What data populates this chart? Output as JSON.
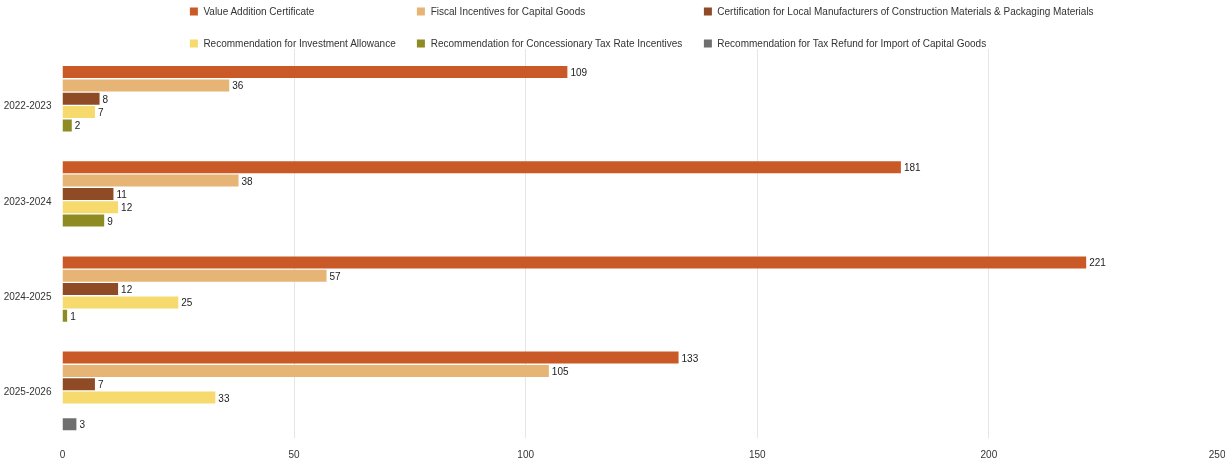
{
  "chart_data": {
    "type": "bar",
    "orientation": "horizontal",
    "categories": [
      "2022-2023",
      "2023-2024",
      "2024-2025",
      "2025-2026"
    ],
    "series": [
      {
        "name": "Value Addition Certificate",
        "color": "#c95a27",
        "values": [
          109,
          181,
          221,
          133
        ]
      },
      {
        "name": "Fiscal Incentives for Capital Goods",
        "color": "#e6b474",
        "values": [
          36,
          38,
          57,
          105
        ]
      },
      {
        "name": "Certification for Local Manufacturers of Construction Materials & Packaging Materials",
        "color": "#8e4b26",
        "values": [
          8,
          11,
          12,
          7
        ]
      },
      {
        "name": "Recommendation for Investment Allowance",
        "color": "#f6da6e",
        "values": [
          7,
          12,
          25,
          33
        ]
      },
      {
        "name": "Recommendation for Concessionary Tax Rate Incentives",
        "color": "#8d8b22",
        "values": [
          2,
          9,
          1,
          null
        ]
      },
      {
        "name": "Recommendation for Tax Refund for Import of Capital Goods",
        "color": "#6f6f6f",
        "values": [
          null,
          null,
          null,
          3
        ]
      }
    ],
    "xlim": [
      0,
      250
    ],
    "xticks": [
      0,
      50,
      100,
      150,
      200,
      250
    ],
    "grid": "x",
    "legend": "top",
    "data_labels": true
  }
}
